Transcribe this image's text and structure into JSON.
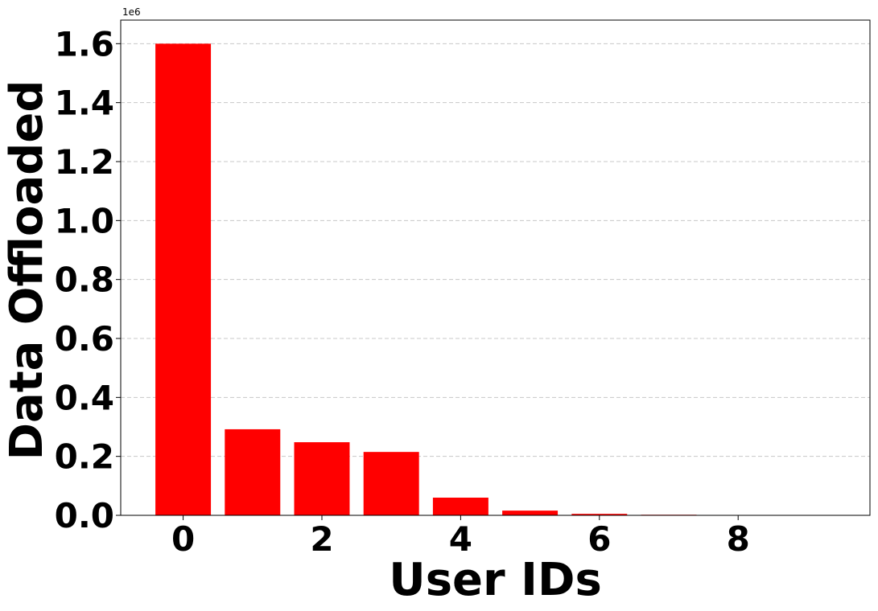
{
  "chart_data": {
    "type": "bar",
    "x": [
      0,
      1,
      2,
      3,
      4,
      5,
      6,
      7,
      8,
      9
    ],
    "values": [
      1600000,
      292000,
      248000,
      215000,
      60000,
      16000,
      5000,
      2000,
      500,
      100
    ],
    "xlabel": "User IDs",
    "ylabel": "Data Offloaded",
    "y_offset_text": "1e6",
    "xlim": [
      -0.9,
      9.9
    ],
    "ylim": [
      0,
      1680000
    ],
    "x_ticks": [
      0,
      2,
      4,
      6,
      8
    ],
    "x_tick_labels": [
      "0",
      "2",
      "4",
      "6",
      "8"
    ],
    "y_ticks": [
      0,
      200000,
      400000,
      600000,
      800000,
      1000000,
      1200000,
      1400000,
      1600000
    ],
    "y_tick_labels": [
      "0.0",
      "0.2",
      "0.4",
      "0.6",
      "0.8",
      "1.0",
      "1.2",
      "1.4",
      "1.6"
    ],
    "bar_color": "#ff0000",
    "grid": "y-dashed",
    "legend": "none"
  }
}
